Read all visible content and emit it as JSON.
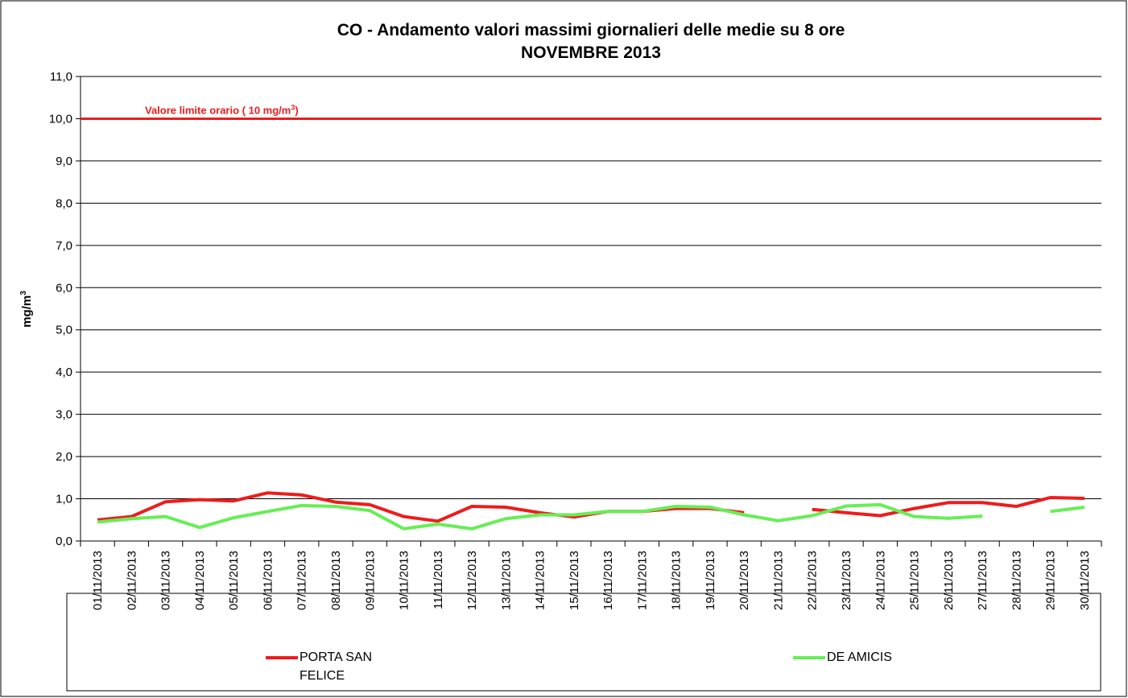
{
  "chart_data": {
    "type": "line",
    "title": "CO - Andamento valori massimi giornalieri delle medie su 8 ore",
    "subtitle": "NOVEMBRE 2013",
    "ylabel": "mg/m",
    "ylabel_sup": "3",
    "categories": [
      "01/11/2013",
      "02/11/2013",
      "03/11/2013",
      "04/11/2013",
      "05/11/2013",
      "06/11/2013",
      "07/11/2013",
      "08/11/2013",
      "09/11/2013",
      "10/11/2013",
      "11/11/2013",
      "12/11/2013",
      "13/11/2013",
      "14/11/2013",
      "15/11/2013",
      "16/11/2013",
      "17/11/2013",
      "18/11/2013",
      "19/11/2013",
      "20/11/2013",
      "21/11/2013",
      "22/11/2013",
      "23/11/2013",
      "24/11/2013",
      "25/11/2013",
      "26/11/2013",
      "27/11/2013",
      "28/11/2013",
      "29/11/2013",
      "30/11/2013"
    ],
    "series": [
      {
        "name": "PORTA SAN FELICE",
        "color": "#ee1c1c",
        "values": [
          0.5,
          0.58,
          0.93,
          0.98,
          0.95,
          1.14,
          1.09,
          0.92,
          0.86,
          0.58,
          0.47,
          0.82,
          0.8,
          0.67,
          0.57,
          0.7,
          0.7,
          0.77,
          0.77,
          0.67,
          null,
          0.75,
          0.67,
          0.6,
          0.77,
          0.91,
          0.91,
          0.82,
          1.03,
          1.01
        ]
      },
      {
        "name": "DE AMICIS",
        "color": "#66ee55",
        "values": [
          0.45,
          0.53,
          0.58,
          0.32,
          0.55,
          0.7,
          0.84,
          0.82,
          0.72,
          0.29,
          0.4,
          0.29,
          0.53,
          0.62,
          0.62,
          0.7,
          0.7,
          0.82,
          0.8,
          0.62,
          0.48,
          0.6,
          0.83,
          0.86,
          0.58,
          0.54,
          0.59,
          null,
          0.7,
          0.8
        ]
      }
    ],
    "limit": {
      "value": 10,
      "color": "#ee1c1c",
      "text": "Valore limite orario ( 10 mg/m",
      "sup": "3",
      "end": ")"
    },
    "ylim": [
      0,
      11
    ],
    "yticks": [
      {
        "value": 0,
        "label": "0,0"
      },
      {
        "value": 1,
        "label": "1,0"
      },
      {
        "value": 2,
        "label": "2,0"
      },
      {
        "value": 3,
        "label": "3,0"
      },
      {
        "value": 4,
        "label": "4,0"
      },
      {
        "value": 5,
        "label": "5,0"
      },
      {
        "value": 6,
        "label": "6,0"
      },
      {
        "value": 7,
        "label": "7,0"
      },
      {
        "value": 8,
        "label": "8,0"
      },
      {
        "value": 9,
        "label": "9,0"
      },
      {
        "value": 10,
        "label": "10,0"
      },
      {
        "value": 11,
        "label": "11,0"
      }
    ],
    "grid": true
  }
}
